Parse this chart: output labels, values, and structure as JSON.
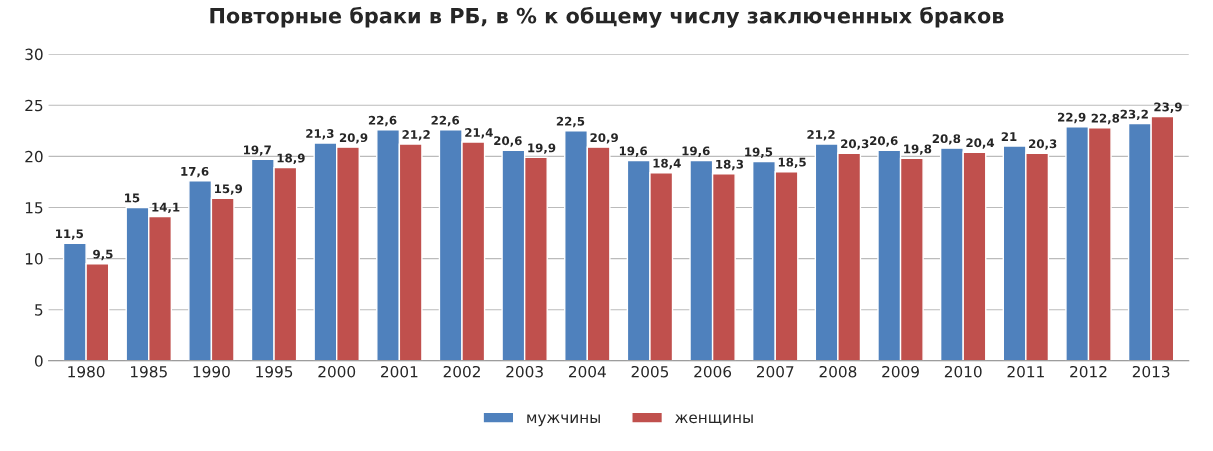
{
  "chart_data": {
    "type": "bar",
    "title": "Повторные браки в РБ, в % к общему числу заключенных браков",
    "categories": [
      "1980",
      "1985",
      "1990",
      "1995",
      "2000",
      "2001",
      "2002",
      "2003",
      "2004",
      "2005",
      "2006",
      "2007",
      "2008",
      "2009",
      "2010",
      "2011",
      "2012",
      "2013"
    ],
    "series": [
      {
        "name": "мужчины",
        "color": "#4f81bd",
        "values": [
          11.5,
          15,
          17.6,
          19.7,
          21.3,
          22.6,
          22.6,
          20.6,
          22.5,
          19.6,
          19.6,
          19.5,
          21.2,
          20.6,
          20.8,
          21,
          22.9,
          23.2
        ],
        "value_labels": [
          "11,5",
          "15",
          "17,6",
          "19,7",
          "21,3",
          "22,6",
          "22,6",
          "20,6",
          "22,5",
          "19,6",
          "19,6",
          "19,5",
          "21,2",
          "20,6",
          "20,8",
          "21",
          "22,9",
          "23,2"
        ]
      },
      {
        "name": "женщины",
        "color": "#c0504d",
        "values": [
          9.5,
          14.1,
          15.9,
          18.9,
          20.9,
          21.2,
          21.4,
          19.9,
          20.9,
          18.4,
          18.3,
          18.5,
          20.3,
          19.8,
          20.4,
          20.3,
          22.8,
          23.9
        ],
        "value_labels": [
          "9,5",
          "14,1",
          "15,9",
          "18,9",
          "20,9",
          "21,2",
          "21,4",
          "19,9",
          "20,9",
          "18,4",
          "18,3",
          "18,5",
          "20,3",
          "19,8",
          "20,4",
          "20,3",
          "22,8",
          "23,9"
        ]
      }
    ],
    "ylim": [
      0,
      30
    ],
    "yticks": [
      0,
      5,
      10,
      15,
      20,
      25,
      30
    ],
    "grid": "y",
    "legend": "bottom"
  }
}
